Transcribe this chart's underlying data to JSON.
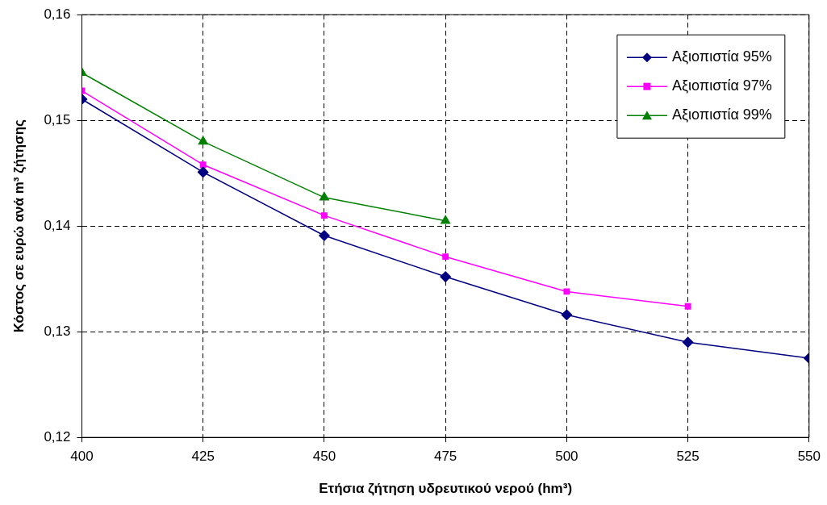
{
  "chart_data": {
    "type": "line",
    "xlabel": "Ετήσια ζήτηση υδρευτικού νερού (hm³)",
    "ylabel": "Κόστος σε ευρώ ανά m³ ζήτησης",
    "x": [
      400,
      425,
      450,
      475,
      500,
      525,
      550
    ],
    "series": [
      {
        "name": "Αξιοπιστία 95%",
        "color": "#000080",
        "marker": "diamond",
        "values": [
          0.152,
          0.1451,
          0.1391,
          0.1352,
          0.1316,
          0.129,
          0.1275
        ]
      },
      {
        "name": "Αξιοπιστία 97%",
        "color": "#ff00ff",
        "marker": "square",
        "values": [
          0.1528,
          0.1458,
          0.141,
          0.1371,
          0.1338,
          0.1324,
          null
        ]
      },
      {
        "name": "Αξιοπιστία 99%",
        "color": "#008000",
        "marker": "triangle",
        "values": [
          0.1545,
          0.148,
          0.1427,
          0.1405,
          null,
          null,
          null
        ]
      }
    ],
    "xlim": [
      400,
      550
    ],
    "xticks": [
      400,
      425,
      450,
      475,
      500,
      525,
      550
    ],
    "ylim": [
      0.12,
      0.16
    ],
    "yticks": [
      {
        "value": 0.12,
        "label": "0,12"
      },
      {
        "value": 0.13,
        "label": "0,13"
      },
      {
        "value": 0.14,
        "label": "0,14"
      },
      {
        "value": 0.15,
        "label": "0,15"
      },
      {
        "value": 0.16,
        "label": "0,16"
      }
    ],
    "grid": true,
    "line_style": "solid",
    "legend": "top right"
  }
}
